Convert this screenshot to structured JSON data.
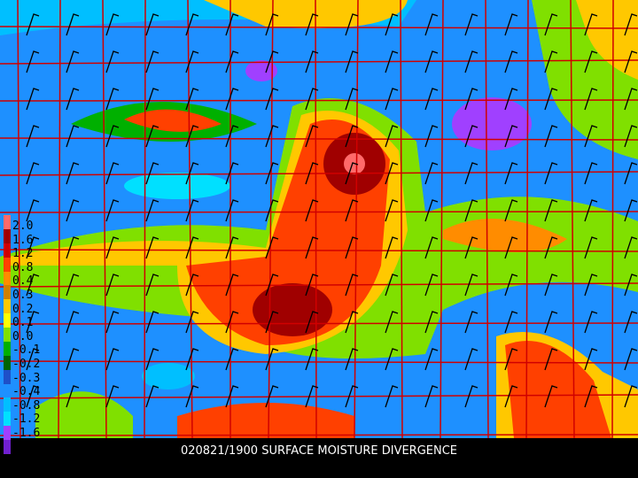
{
  "title": "020821/1900 SURFACE MOISTURE DIVERGENCE",
  "legend": {
    "labels": [
      "2.0",
      "1.6",
      "1.2",
      "0.8",
      "0.4",
      "0.3",
      "0.2",
      "0.1",
      "0.0",
      "-0.1",
      "-0.2",
      "-0.3",
      "-0.4",
      "-0.8",
      "-1.2",
      "-1.6"
    ],
    "colors": [
      "#ff6a6a",
      "#a00000",
      "#d00000",
      "#ff4000",
      "#ff8c00",
      "#d08000",
      "#ffc800",
      "#ffff00",
      "#80e000",
      "#00b000",
      "#006400",
      "#1e50c8",
      "#1e90ff",
      "#00bfff",
      "#00e0ff",
      "#a040ff",
      "#7020d0"
    ]
  },
  "colors": {
    "background": "#000000",
    "boundaries": "#d00000",
    "barbs": "#000000",
    "title": "#ffffff"
  }
}
